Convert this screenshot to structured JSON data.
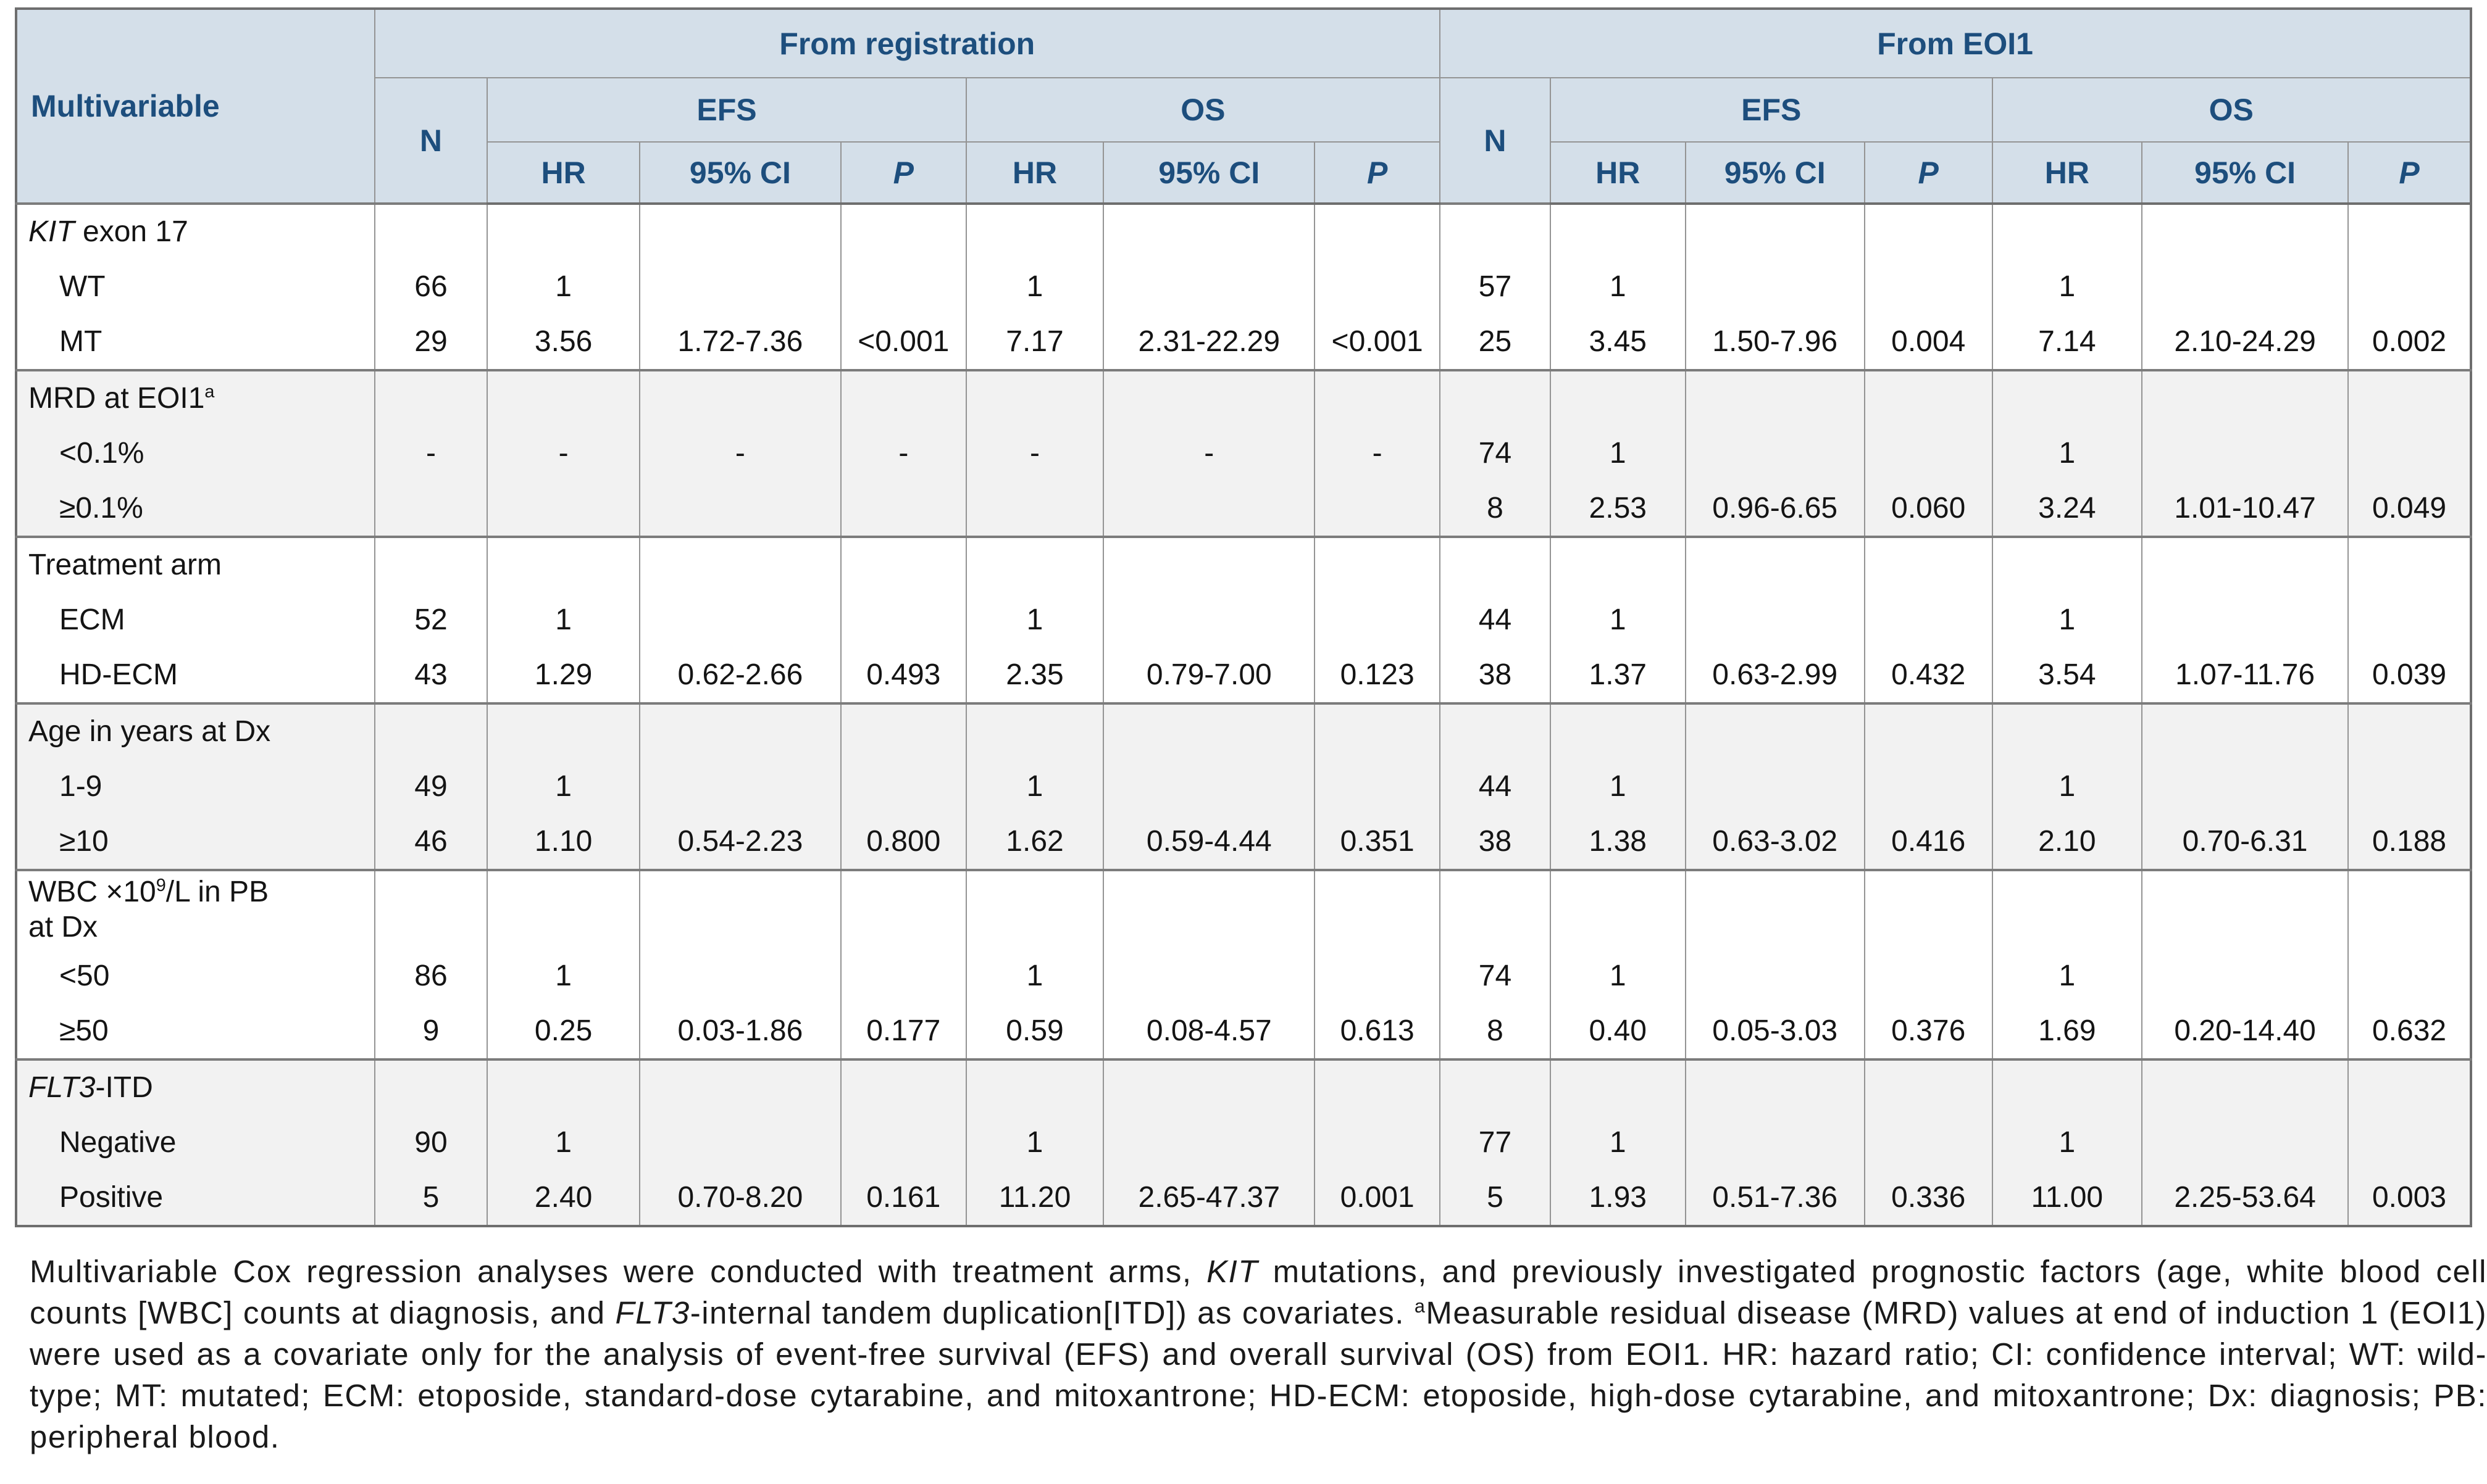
{
  "colors": {
    "header_bg": "#d4dfe9",
    "header_text": "#1d4e7d",
    "shade_bg": "#f2f2f2",
    "border": "#949494",
    "border_strong": "#6e6e6e",
    "text": "#141414"
  },
  "table": {
    "col1_header": "Multivariable",
    "group_registration": "From registration",
    "group_eoi1": "From EOI1",
    "headers": {
      "n": "N",
      "efs": "EFS",
      "os": "OS",
      "hr": "HR",
      "ci": "95% CI",
      "p": "P"
    },
    "sections": [
      {
        "label_parts": [
          {
            "t": "KIT",
            "i": true
          },
          {
            "t": " exon 17"
          }
        ],
        "rows": [
          {
            "label": "WT",
            "cells": [
              "66",
              "1",
              "",
              "",
              "1",
              "",
              "",
              "57",
              "1",
              "",
              "",
              "1",
              "",
              ""
            ]
          },
          {
            "label": "MT",
            "cells": [
              "29",
              "3.56",
              "1.72-7.36",
              "<0.001",
              "7.17",
              "2.31-22.29",
              "<0.001",
              "25",
              "3.45",
              "1.50-7.96",
              "0.004",
              "7.14",
              "2.10-24.29",
              "0.002"
            ]
          }
        ]
      },
      {
        "label_parts": [
          {
            "t": "MRD at EOI1"
          },
          {
            "t": "a",
            "sup": true
          }
        ],
        "rows": [
          {
            "label": "<0.1%",
            "cells": [
              "-",
              "-",
              "-",
              "-",
              "-",
              "-",
              "-",
              "74",
              "1",
              "",
              "",
              "1",
              "",
              ""
            ]
          },
          {
            "label": "≥0.1%",
            "cells": [
              "",
              "",
              "",
              "",
              "",
              "",
              "",
              "8",
              "2.53",
              "0.96-6.65",
              "0.060",
              "3.24",
              "1.01-10.47",
              "0.049"
            ]
          }
        ]
      },
      {
        "label_parts": [
          {
            "t": "Treatment arm"
          }
        ],
        "rows": [
          {
            "label": "ECM",
            "cells": [
              "52",
              "1",
              "",
              "",
              "1",
              "",
              "",
              "44",
              "1",
              "",
              "",
              "1",
              "",
              ""
            ]
          },
          {
            "label": "HD-ECM",
            "cells": [
              "43",
              "1.29",
              "0.62-2.66",
              "0.493",
              "2.35",
              "0.79-7.00",
              "0.123",
              "38",
              "1.37",
              "0.63-2.99",
              "0.432",
              "3.54",
              "1.07-11.76",
              "0.039"
            ]
          }
        ]
      },
      {
        "label_parts": [
          {
            "t": "Age in years at Dx"
          }
        ],
        "rows": [
          {
            "label": "1-9",
            "cells": [
              "49",
              "1",
              "",
              "",
              "1",
              "",
              "",
              "44",
              "1",
              "",
              "",
              "1",
              "",
              ""
            ]
          },
          {
            "label": "≥10",
            "cells": [
              "46",
              "1.10",
              "0.54-2.23",
              "0.800",
              "1.62",
              "0.59-4.44",
              "0.351",
              "38",
              "1.38",
              "0.63-3.02",
              "0.416",
              "2.10",
              "0.70-6.31",
              "0.188"
            ]
          }
        ]
      },
      {
        "label_parts": [
          {
            "t": "WBC ×10"
          },
          {
            "t": "9",
            "sup": true
          },
          {
            "t": "/L in PB"
          },
          {
            "br": true
          },
          {
            "t": "at Dx"
          }
        ],
        "rows": [
          {
            "label": "<50",
            "cells": [
              "86",
              "1",
              "",
              "",
              "1",
              "",
              "",
              "74",
              "1",
              "",
              "",
              "1",
              "",
              ""
            ]
          },
          {
            "label": "≥50",
            "cells": [
              "9",
              "0.25",
              "0.03-1.86",
              "0.177",
              "0.59",
              "0.08-4.57",
              "0.613",
              "8",
              "0.40",
              "0.05-3.03",
              "0.376",
              "1.69",
              "0.20-14.40",
              "0.632"
            ]
          }
        ]
      },
      {
        "label_parts": [
          {
            "t": "FLT3",
            "i": true
          },
          {
            "t": "-ITD"
          }
        ],
        "rows": [
          {
            "label": "Negative",
            "cells": [
              "90",
              "1",
              "",
              "",
              "1",
              "",
              "",
              "77",
              "1",
              "",
              "",
              "1",
              "",
              ""
            ]
          },
          {
            "label": "Positive",
            "cells": [
              "5",
              "2.40",
              "0.70-8.20",
              "0.161",
              "11.20",
              "2.65-47.37",
              "0.001",
              "5",
              "1.93",
              "0.51-7.36",
              "0.336",
              "11.00",
              "2.25-53.64",
              "0.003"
            ]
          }
        ]
      }
    ]
  },
  "footnote_parts": [
    {
      "t": "Multivariable Cox regression analyses were conducted with treatment arms, "
    },
    {
      "t": "KIT",
      "i": true
    },
    {
      "t": " mutations, and previously investigated prognostic factors (age, white blood cell counts [WBC] counts at diagnosis, and "
    },
    {
      "t": "FLT3",
      "i": true
    },
    {
      "t": "-internal tandem duplication[ITD]) as covariates. "
    },
    {
      "t": "a",
      "sup": true
    },
    {
      "t": "Measurable residual disease (MRD) values at end of induction 1 (EOI1) were used as a covariate only for the analysis of event-free survival (EFS) and overall survival (OS) from EOI1. HR: hazard ratio; CI: confidence interval; WT: wild-type; MT: mutated; ECM: etoposide, standard-dose cytarabine, and mitoxantrone; HD-ECM: etoposide, high-dose cytarabine, and mitoxantrone; Dx: diagnosis; PB: peripheral blood."
    }
  ]
}
